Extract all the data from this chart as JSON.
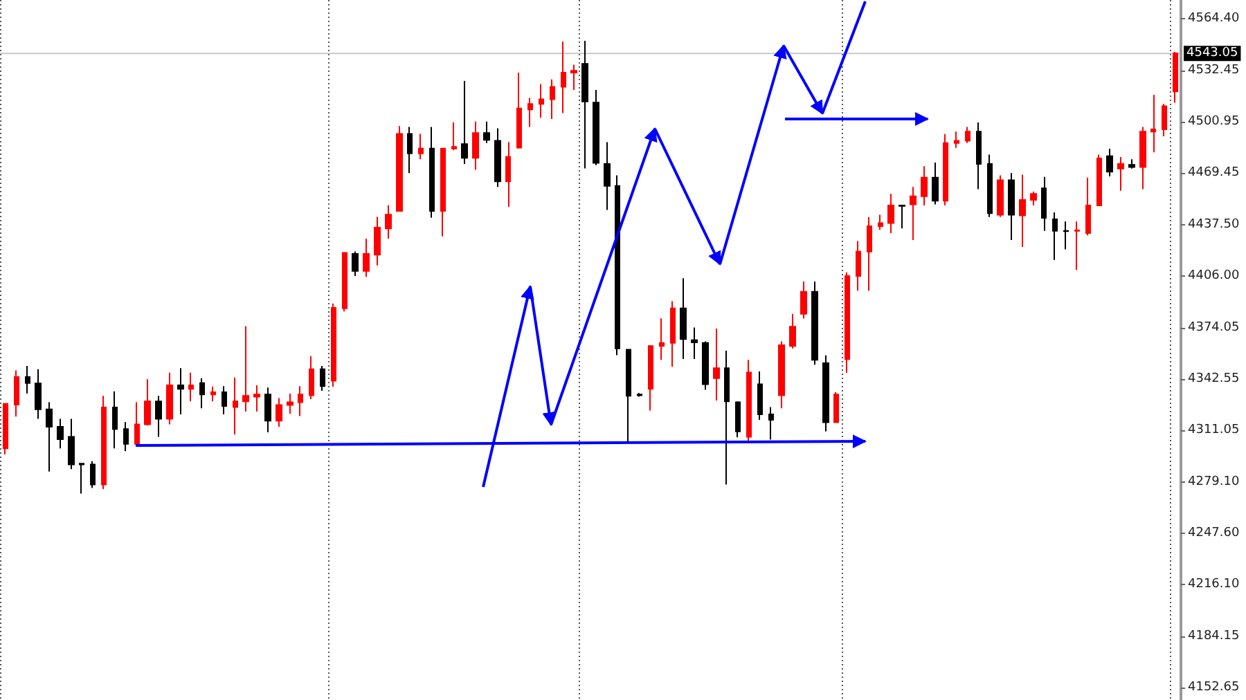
{
  "chart_data": {
    "type": "candlestick",
    "categories": [
      null,
      null,
      null,
      null,
      null,
      null,
      null,
      null,
      null,
      null,
      null,
      null,
      null,
      null,
      null,
      null,
      null,
      null,
      null,
      null,
      null,
      null,
      null,
      null,
      null,
      null,
      null,
      null,
      null,
      null,
      null,
      null,
      null,
      null,
      null,
      null,
      null,
      null,
      null,
      null,
      null,
      null,
      null,
      null,
      null,
      null,
      null,
      null,
      null,
      null,
      null,
      null,
      null,
      null,
      null,
      null,
      null,
      null,
      null,
      null,
      null,
      null,
      null,
      null,
      null,
      null,
      null,
      null,
      null,
      null,
      null,
      null,
      null,
      null,
      null,
      null,
      null,
      null,
      null,
      null,
      null,
      null,
      null,
      null,
      null,
      null,
      null,
      null,
      null,
      null,
      null,
      null,
      null,
      null,
      null,
      null,
      null,
      null,
      null,
      null,
      null,
      null,
      null,
      null,
      null,
      null,
      null,
      null
    ],
    "ohlc": [
      [
        4299.9,
        4327.4,
        4296.2,
        4327.4
      ],
      [
        4326.9,
        4347.9,
        4319.5,
        4343.9
      ],
      [
        4343.9,
        4350.7,
        4333.7,
        4340.2
      ],
      [
        4339.9,
        4348.7,
        4318.1,
        4324.0
      ],
      [
        4324.0,
        4328.3,
        4285.7,
        4313.2
      ],
      [
        4313.2,
        4318.1,
        4299.9,
        4305.6
      ],
      [
        4307.0,
        4318.1,
        4287.1,
        4290.0
      ],
      [
        4290.5,
        4291.0,
        4272.1,
        4290.0
      ],
      [
        4290.0,
        4292.0,
        4275.5,
        4277.7
      ],
      [
        4277.7,
        4332.3,
        4274.9,
        4325.2
      ],
      [
        4325.2,
        4335.1,
        4299.9,
        4311.8
      ],
      [
        4311.8,
        4316.1,
        4298.2,
        4302.7
      ],
      [
        4302.7,
        4328.3,
        4301.9,
        4314.7
      ],
      [
        4314.7,
        4342.5,
        4314.1,
        4328.9
      ],
      [
        4328.9,
        4332.3,
        4307.0,
        4318.1
      ],
      [
        4318.1,
        4346.5,
        4314.7,
        4338.8
      ],
      [
        4338.8,
        4349.3,
        4320.9,
        4336.5
      ],
      [
        4336.5,
        4346.5,
        4328.9,
        4338.8
      ],
      [
        4340.2,
        4343.1,
        4324.6,
        4333.1
      ],
      [
        4333.1,
        4337.9,
        4328.9,
        4334.5
      ],
      [
        4334.5,
        4338.2,
        4320.9,
        4326.0
      ],
      [
        4325.4,
        4343.6,
        4308.4,
        4328.9
      ],
      [
        4328.9,
        4375.2,
        4322.6,
        4332.3
      ],
      [
        4331.7,
        4338.8,
        4322.6,
        4333.1
      ],
      [
        4333.1,
        4337.4,
        4309.8,
        4316.9
      ],
      [
        4316.9,
        4330.9,
        4313.2,
        4326.6
      ],
      [
        4326.6,
        4333.7,
        4321.2,
        4328.3
      ],
      [
        4328.3,
        4338.2,
        4319.8,
        4333.1
      ],
      [
        4332.6,
        4356.7,
        4330.3,
        4348.7
      ],
      [
        4348.7,
        4350.7,
        4335.4,
        4338.2
      ],
      [
        4341.6,
        4389.1,
        4337.9,
        4386.5
      ],
      [
        4386.2,
        4420.3,
        4384.2,
        4420.3
      ],
      [
        4419.7,
        4421.2,
        4406.1,
        4409.2
      ],
      [
        4409.2,
        4429.1,
        4405.5,
        4419.7
      ],
      [
        4419.2,
        4442.5,
        4412.6,
        4435.9
      ],
      [
        4435.4,
        4449.6,
        4429.1,
        4443.9
      ],
      [
        4446.1,
        4498.4,
        4446.1,
        4493.6
      ],
      [
        4493.6,
        4497.8,
        4469.4,
        4481.6
      ],
      [
        4481.6,
        4493.6,
        4477.9,
        4484.5
      ],
      [
        4484.5,
        4497.8,
        4441.9,
        4446.1
      ],
      [
        4446.1,
        4484.5,
        4430.5,
        4484.5
      ],
      [
        4484.5,
        4500.7,
        4483.6,
        4485.6
      ],
      [
        4487.3,
        4526.2,
        4475.1,
        4478.8
      ],
      [
        4478.8,
        4501.2,
        4471.4,
        4494.1
      ],
      [
        4494.1,
        4501.2,
        4487.9,
        4489.9
      ],
      [
        4489.3,
        4497.0,
        4460.9,
        4464.3
      ],
      [
        4464.3,
        4488.5,
        4448.7,
        4479.4
      ],
      [
        4485.1,
        4531.3,
        4484.5,
        4509.2
      ],
      [
        4508.6,
        4515.7,
        4497.8,
        4512.0
      ],
      [
        4512.0,
        4524.3,
        4503.5,
        4514.9
      ],
      [
        4514.9,
        4527.1,
        4502.7,
        4522.5
      ],
      [
        4522.5,
        4550.4,
        4506.4,
        4531.3
      ],
      [
        4531.3,
        4536.2,
        4520.6,
        4532.5
      ],
      [
        4536.7,
        4550.9,
        4472.3,
        4513.5
      ],
      [
        4512.9,
        4520.6,
        4474.3,
        4475.7
      ],
      [
        4475.1,
        4488.5,
        4446.7,
        4461.5
      ],
      [
        4461.5,
        4468.0,
        4357.3,
        4361.5
      ],
      [
        4360.7,
        4360.7,
        4303.3,
        4332.3
      ],
      [
        4333.1,
        4334.0,
        4331.7,
        4332.6
      ],
      [
        4336.5,
        4363.5,
        4323.2,
        4362.9
      ],
      [
        4362.9,
        4380.0,
        4354.4,
        4364.9
      ],
      [
        4364.9,
        4390.5,
        4350.2,
        4386.2
      ],
      [
        4386.2,
        4404.7,
        4355.0,
        4367.2
      ],
      [
        4366.6,
        4374.3,
        4355.0,
        4365.2
      ],
      [
        4364.9,
        4365.8,
        4336.0,
        4339.4
      ],
      [
        4343.1,
        4373.7,
        4329.4,
        4349.3
      ],
      [
        4349.3,
        4360.1,
        4277.7,
        4328.9
      ],
      [
        4328.3,
        4328.9,
        4306.7,
        4310.4
      ],
      [
        4307.0,
        4354.4,
        4303.9,
        4346.7
      ],
      [
        4339.4,
        4347.3,
        4317.5,
        4320.9
      ],
      [
        4320.9,
        4325.4,
        4305.3,
        4317.5
      ],
      [
        4332.6,
        4365.8,
        4324.6,
        4363.5
      ],
      [
        4362.9,
        4382.8,
        4361.5,
        4374.9
      ],
      [
        4382.8,
        4402.7,
        4379.9,
        4396.4
      ],
      [
        4396.4,
        4402.7,
        4351.5,
        4354.4
      ],
      [
        4352.4,
        4357.2,
        4310.4,
        4316.0
      ],
      [
        4316.0,
        4334.5,
        4316.0,
        4333.1
      ],
      [
        4354.9,
        4408.3,
        4346.4,
        4406.1
      ],
      [
        4406.1,
        4427.6,
        4397.0,
        4421.1
      ],
      [
        4421.1,
        4442.4,
        4397.0,
        4436.7
      ],
      [
        4436.7,
        4443.8,
        4434.5,
        4438.7
      ],
      [
        4438.7,
        4456.6,
        4432.5,
        4449.5
      ],
      [
        4449.5,
        4449.8,
        4435.3,
        4449.2
      ],
      [
        4450.1,
        4460.9,
        4428.2,
        4455.2
      ],
      [
        4455.2,
        4473.7,
        4449.5,
        4466.6
      ],
      [
        4466.6,
        4475.9,
        4450.1,
        4452.4
      ],
      [
        4452.4,
        4493.5,
        4449.5,
        4487.9
      ],
      [
        4487.9,
        4495.0,
        4485.0,
        4489.3
      ],
      [
        4489.3,
        4497.8,
        4487.9,
        4495.0
      ],
      [
        4495.0,
        4500.6,
        4459.5,
        4475.1
      ],
      [
        4475.1,
        4480.8,
        4442.4,
        4444.7
      ],
      [
        4443.8,
        4468.0,
        4442.4,
        4465.1
      ],
      [
        4465.1,
        4469.4,
        4428.2,
        4443.8
      ],
      [
        4443.3,
        4468.5,
        4424.0,
        4452.9
      ],
      [
        4452.9,
        4458.0,
        4449.5,
        4456.6
      ],
      [
        4460.0,
        4467.1,
        4433.9,
        4441.8
      ],
      [
        4441.0,
        4445.3,
        4416.0,
        4433.9
      ],
      [
        4433.9,
        4439.6,
        4422.5,
        4433.6
      ],
      [
        4433.9,
        4439.6,
        4409.8,
        4434.2
      ],
      [
        4432.5,
        4466.6,
        4431.1,
        4449.5
      ],
      [
        4449.5,
        4480.8,
        4449.5,
        4478.5
      ],
      [
        4479.9,
        4484.4,
        4467.4,
        4470.3
      ],
      [
        4472.2,
        4479.3,
        4458.6,
        4475.1
      ],
      [
        4474.5,
        4477.9,
        4472.2,
        4473.1
      ],
      [
        4473.1,
        4497.8,
        4459.5,
        4495.0
      ],
      [
        4495.0,
        4517.7,
        4482.2,
        4496.4
      ],
      [
        4496.4,
        4512.0,
        4492.1,
        4510.6
      ],
      [
        4519.7,
        4544.1,
        4512.8,
        4543.05
      ]
    ],
    "colors": [
      "#ff0000",
      "#ff0000",
      "#000000",
      "#000000",
      "#000000",
      "#000000",
      "#000000",
      "#000000",
      "#000000",
      "#ff0000",
      "#000000",
      "#000000",
      "#ff0000",
      "#ff0000",
      "#000000",
      "#ff0000",
      "#000000",
      "#ff0000",
      "#000000",
      "#ff0000",
      "#000000",
      "#ff0000",
      "#ff0000",
      "#ff0000",
      "#000000",
      "#ff0000",
      "#ff0000",
      "#ff0000",
      "#ff0000",
      "#000000",
      "#ff0000",
      "#ff0000",
      "#000000",
      "#ff0000",
      "#ff0000",
      "#ff0000",
      "#ff0000",
      "#000000",
      "#ff0000",
      "#000000",
      "#ff0000",
      "#ff0000",
      "#000000",
      "#ff0000",
      "#000000",
      "#000000",
      "#ff0000",
      "#ff0000",
      "#ff0000",
      "#ff0000",
      "#ff0000",
      "#ff0000",
      "#ff0000",
      "#000000",
      "#000000",
      "#000000",
      "#000000",
      "#000000",
      "#000000",
      "#ff0000",
      "#ff0000",
      "#ff0000",
      "#000000",
      "#000000",
      "#000000",
      "#ff0000",
      "#000000",
      "#000000",
      "#ff0000",
      "#000000",
      "#000000",
      "#ff0000",
      "#ff0000",
      "#ff0000",
      "#000000",
      "#000000",
      "#ff0000",
      "#ff0000",
      "#ff0000",
      "#ff0000",
      "#ff0000",
      "#ff0000",
      "#000000",
      "#ff0000",
      "#ff0000",
      "#000000",
      "#ff0000",
      "#ff0000",
      "#ff0000",
      "#000000",
      "#000000",
      "#ff0000",
      "#000000",
      "#ff0000",
      "#ff0000",
      "#000000",
      "#000000",
      "#000000",
      "#ff0000",
      "#ff0000",
      "#ff0000",
      "#000000",
      "#ff0000",
      "#000000",
      "#ff0000",
      "#ff0000",
      "#ff0000",
      "#ff0000"
    ],
    "ylim": [
      4145,
      4576
    ],
    "yticks": [
      {
        "value": 4564.4,
        "label": "4564.40"
      },
      {
        "value": 4532.45,
        "label": "4532.45"
      },
      {
        "value": 4500.95,
        "label": "4500.95"
      },
      {
        "value": 4469.45,
        "label": "4469.45"
      },
      {
        "value": 4437.5,
        "label": "4437.50"
      },
      {
        "value": 4406,
        "label": "4406.00"
      },
      {
        "value": 4374.05,
        "label": "4374.05"
      },
      {
        "value": 4342.55,
        "label": "4342.55"
      },
      {
        "value": 4311.05,
        "label": "4311.05"
      },
      {
        "value": 4279.1,
        "label": "4279.10"
      },
      {
        "value": 4247.6,
        "label": "4247.60"
      },
      {
        "value": 4216.1,
        "label": "4216.10"
      },
      {
        "value": 4184.15,
        "label": "4184.15"
      },
      {
        "value": 4152.65,
        "label": "4152.65"
      }
    ],
    "ref_lines": [
      {
        "axis": "y",
        "value": 4543.05,
        "label": "4543.05",
        "color": "#c8c8c8"
      }
    ],
    "grid": "x",
    "tick_labels": "y"
  }
}
